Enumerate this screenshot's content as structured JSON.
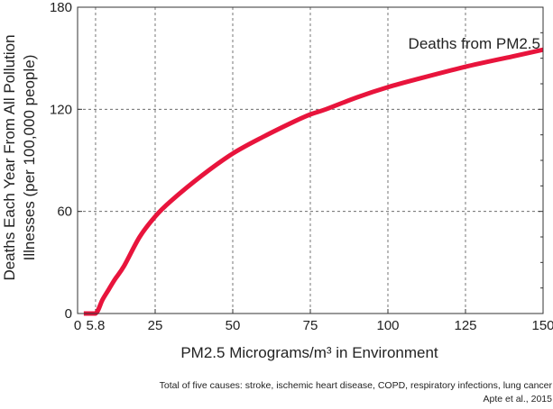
{
  "chart_data": {
    "type": "line",
    "xlabel": "PM2.5 Micrograms/m³ in Environment",
    "ylabel_lines": [
      "Deaths Each Year From All Pollution",
      "Illnesses (per 100,000 people)"
    ],
    "xlim": [
      0,
      150
    ],
    "ylim": [
      0,
      180
    ],
    "x_ticks": [
      {
        "value": 0,
        "label": "0"
      },
      {
        "value": 5.8,
        "label": "5.8"
      },
      {
        "value": 25,
        "label": "25"
      },
      {
        "value": 50,
        "label": "50"
      },
      {
        "value": 75,
        "label": "75"
      },
      {
        "value": 100,
        "label": "100"
      },
      {
        "value": 125,
        "label": "125"
      },
      {
        "value": 150,
        "label": "150"
      }
    ],
    "y_ticks": [
      {
        "value": 0,
        "label": "0"
      },
      {
        "value": 60,
        "label": "60"
      },
      {
        "value": 120,
        "label": "120"
      },
      {
        "value": 180,
        "label": "180"
      }
    ],
    "grid": true,
    "series": [
      {
        "name": "Deaths from PM2.5",
        "color": "#e8143c",
        "x": [
          2,
          5.8,
          8,
          10,
          12,
          15,
          20,
          25,
          30,
          40,
          50,
          60,
          70,
          75,
          80,
          90,
          100,
          110,
          125,
          140,
          150
        ],
        "y": [
          0,
          0,
          8,
          14,
          20,
          28,
          45,
          57,
          66,
          81,
          94,
          104,
          113,
          117,
          120,
          127,
          133,
          138,
          145,
          151,
          155
        ]
      }
    ],
    "notes": [
      "Total of five causes: stroke, ischemic heart disease, COPD, respiratory infections, lung cancer",
      "Apte et al., 2015"
    ]
  }
}
